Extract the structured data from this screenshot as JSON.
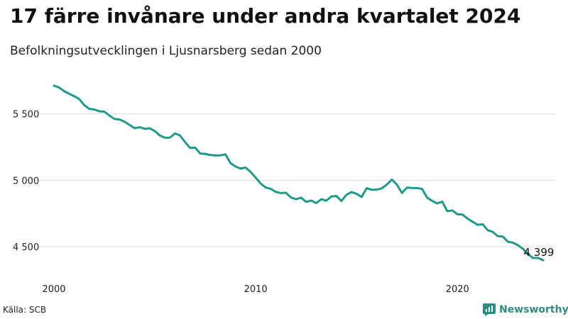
{
  "header": {
    "title": "17 färre invånare under andra kvartalet 2024",
    "subtitle": "Befolkningsutvecklingen i Ljusnarsberg sedan 2000"
  },
  "footer": {
    "source": "Källa: SCB",
    "brand": "Newsworthy"
  },
  "colors": {
    "line": "#1f9a88",
    "grid": "#dcdcdc",
    "brand": "#2b8e80"
  },
  "chart_data": {
    "type": "line",
    "title": "17 färre invånare under andra kvartalet 2024",
    "subtitle": "Befolkningsutvecklingen i Ljusnarsberg sedan 2000",
    "xlabel": "",
    "ylabel": "",
    "grid": "horizontal",
    "xlim": [
      2000.0,
      2024.25
    ],
    "ylim": [
      4330,
      5760
    ],
    "x_ticks": [
      {
        "value": 2000,
        "label": "2000"
      },
      {
        "value": 2010,
        "label": "2010"
      },
      {
        "value": 2020,
        "label": "2020"
      }
    ],
    "y_ticks": [
      {
        "value": 4500,
        "label": "4 500"
      },
      {
        "value": 5000,
        "label": "5 000"
      },
      {
        "value": 5500,
        "label": "5 500"
      }
    ],
    "end_label": "4 399",
    "series": [
      {
        "values": [
          [
            2000.0,
            5713
          ],
          [
            2000.25,
            5699
          ],
          [
            2000.5,
            5672
          ],
          [
            2000.75,
            5652
          ],
          [
            2001.0,
            5634
          ],
          [
            2001.25,
            5612
          ],
          [
            2001.5,
            5567
          ],
          [
            2001.75,
            5538
          ],
          [
            2002.0,
            5534
          ],
          [
            2002.25,
            5520
          ],
          [
            2002.5,
            5517
          ],
          [
            2002.75,
            5488
          ],
          [
            2003.0,
            5463
          ],
          [
            2003.25,
            5458
          ],
          [
            2003.5,
            5442
          ],
          [
            2003.75,
            5417
          ],
          [
            2004.0,
            5393
          ],
          [
            2004.25,
            5400
          ],
          [
            2004.5,
            5388
          ],
          [
            2004.75,
            5392
          ],
          [
            2005.0,
            5371
          ],
          [
            2005.25,
            5338
          ],
          [
            2005.5,
            5321
          ],
          [
            2005.75,
            5322
          ],
          [
            2006.0,
            5354
          ],
          [
            2006.25,
            5338
          ],
          [
            2006.5,
            5288
          ],
          [
            2006.75,
            5244
          ],
          [
            2007.0,
            5246
          ],
          [
            2007.25,
            5202
          ],
          [
            2007.5,
            5199
          ],
          [
            2007.75,
            5191
          ],
          [
            2008.0,
            5188
          ],
          [
            2008.25,
            5188
          ],
          [
            2008.5,
            5196
          ],
          [
            2008.75,
            5130
          ],
          [
            2009.0,
            5105
          ],
          [
            2009.25,
            5088
          ],
          [
            2009.5,
            5097
          ],
          [
            2009.75,
            5063
          ],
          [
            2010.0,
            5021
          ],
          [
            2010.25,
            4975
          ],
          [
            2010.5,
            4946
          ],
          [
            2010.75,
            4936
          ],
          [
            2011.0,
            4913
          ],
          [
            2011.25,
            4904
          ],
          [
            2011.5,
            4907
          ],
          [
            2011.75,
            4871
          ],
          [
            2012.0,
            4858
          ],
          [
            2012.25,
            4870
          ],
          [
            2012.5,
            4838
          ],
          [
            2012.75,
            4848
          ],
          [
            2013.0,
            4829
          ],
          [
            2013.25,
            4858
          ],
          [
            2013.5,
            4847
          ],
          [
            2013.75,
            4879
          ],
          [
            2014.0,
            4882
          ],
          [
            2014.25,
            4845
          ],
          [
            2014.5,
            4892
          ],
          [
            2014.75,
            4912
          ],
          [
            2015.0,
            4899
          ],
          [
            2015.25,
            4875
          ],
          [
            2015.5,
            4941
          ],
          [
            2015.75,
            4930
          ],
          [
            2016.0,
            4930
          ],
          [
            2016.25,
            4940
          ],
          [
            2016.5,
            4968
          ],
          [
            2016.75,
            5006
          ],
          [
            2017.0,
            4968
          ],
          [
            2017.25,
            4905
          ],
          [
            2017.5,
            4946
          ],
          [
            2017.75,
            4942
          ],
          [
            2018.0,
            4942
          ],
          [
            2018.25,
            4935
          ],
          [
            2018.5,
            4870
          ],
          [
            2018.75,
            4846
          ],
          [
            2019.0,
            4826
          ],
          [
            2019.25,
            4840
          ],
          [
            2019.5,
            4768
          ],
          [
            2019.75,
            4774
          ],
          [
            2020.0,
            4745
          ],
          [
            2020.25,
            4743
          ],
          [
            2020.5,
            4712
          ],
          [
            2020.75,
            4688
          ],
          [
            2021.0,
            4665
          ],
          [
            2021.25,
            4670
          ],
          [
            2021.5,
            4625
          ],
          [
            2021.75,
            4612
          ],
          [
            2022.0,
            4580
          ],
          [
            2022.25,
            4577
          ],
          [
            2022.5,
            4538
          ],
          [
            2022.75,
            4531
          ],
          [
            2023.0,
            4512
          ],
          [
            2023.25,
            4484
          ],
          [
            2023.5,
            4445
          ],
          [
            2023.75,
            4416
          ],
          [
            2024.0,
            4416
          ],
          [
            2024.25,
            4399
          ]
        ]
      }
    ]
  }
}
